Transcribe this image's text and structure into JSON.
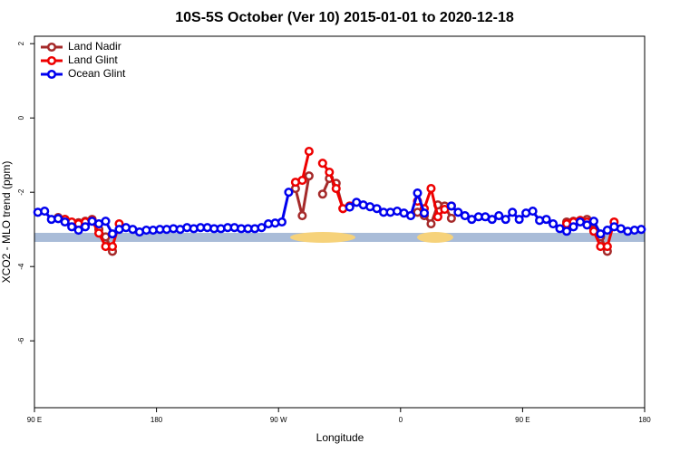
{
  "chart_data": {
    "type": "line",
    "title": "10S-5S October (Ver 10)   2015-01-01 to 2020-12-18",
    "x_label": "Longitude",
    "y_label": "XCO2 - MLO trend (ppm)",
    "xlim": [
      90,
      540
    ],
    "ylim": [
      -7.8,
      2.2
    ],
    "xticks": [
      {
        "value": 90,
        "label": "90 E"
      },
      180,
      {
        "value": 270,
        "label": "90 W"
      },
      {
        "value": 360,
        "label": "0"
      },
      {
        "value": 450,
        "label": "90 E"
      },
      {
        "value": 540,
        "label": "180"
      }
    ],
    "yticks": [
      2,
      0,
      -2,
      -4,
      -6
    ],
    "legend": "top-left",
    "series": [
      {
        "name": "Land Nadir",
        "color": "#a52a2a",
        "x": [
          107.5,
          112.5,
          117.5,
          122.5,
          127.5,
          132.5,
          137.5,
          142.5,
          147.5,
          200,
          282.5,
          287.5,
          292.5,
          297.5,
          302.5,
          307.5,
          312.5,
          317.5,
          322.5,
          350,
          372.5,
          377.5,
          382.5,
          387.5,
          392.5,
          397.5,
          440,
          482.5,
          487.5,
          492.5,
          497.5,
          502.5,
          507.5,
          512.5
        ],
        "values": [
          -2.68,
          -2.73,
          -2.85,
          -2.82,
          -2.78,
          -2.73,
          -3.0,
          -3.2,
          -3.59,
          null,
          -1.9,
          -2.63,
          -1.56,
          null,
          -2.05,
          -1.63,
          -1.76,
          -2.44,
          -2.37,
          null,
          -2.54,
          -2.63,
          -2.85,
          -2.34,
          -2.37,
          -2.7,
          null,
          -2.8,
          -2.78,
          -2.76,
          -2.73,
          -3.0,
          -3.2,
          -3.59
        ]
      },
      {
        "name": "Land Glint",
        "color": "#ee0000",
        "x": [
          112.5,
          117.5,
          122.5,
          127.5,
          132.5,
          137.5,
          142.5,
          147.5,
          152.5,
          200,
          282.5,
          287.5,
          292.5,
          297.5,
          302.5,
          307.5,
          312.5,
          317.5,
          322.5,
          350,
          372.5,
          377.5,
          382.5,
          387.5,
          392.5,
          397.5,
          440,
          482.5,
          487.5,
          492.5,
          497.5,
          502.5,
          507.5,
          512.5,
          517.5
        ],
        "values": [
          -2.73,
          -2.8,
          -2.85,
          -2.8,
          -2.76,
          -3.1,
          -3.46,
          -3.46,
          -2.85,
          null,
          -1.73,
          -1.68,
          -0.9,
          null,
          -1.22,
          -1.46,
          -1.9,
          -2.44,
          -2.37,
          null,
          -2.24,
          -2.44,
          -1.9,
          -2.66,
          -2.46,
          -2.37,
          null,
          -2.85,
          -2.8,
          -2.76,
          -2.8,
          -3.05,
          -3.46,
          -3.46,
          -2.8
        ]
      },
      {
        "name": "Ocean Glint",
        "color": "#0000ee",
        "x": [
          92.5,
          97.5,
          102.5,
          107.5,
          112.5,
          117.5,
          122.5,
          127.5,
          132.5,
          137.5,
          142.5,
          147.5,
          152.5,
          157.5,
          162.5,
          167.5,
          172.5,
          177.5,
          182.5,
          187.5,
          192.5,
          197.5,
          202.5,
          207.5,
          212.5,
          217.5,
          222.5,
          227.5,
          232.5,
          237.5,
          242.5,
          247.5,
          252.5,
          257.5,
          262.5,
          267.5,
          272.5,
          277.5,
          297.5,
          322.5,
          327.5,
          332.5,
          337.5,
          342.5,
          347.5,
          352.5,
          357.5,
          362.5,
          367.5,
          372.5,
          377.5,
          387.5,
          397.5,
          402.5,
          407.5,
          412.5,
          417.5,
          422.5,
          427.5,
          432.5,
          437.5,
          442.5,
          447.5,
          452.5,
          457.5,
          462.5,
          467.5,
          472.5,
          477.5,
          482.5,
          487.5,
          492.5,
          497.5,
          502.5,
          507.5,
          512.5,
          517.5,
          522.5,
          527.5,
          532.5,
          537.5
        ],
        "values": [
          -2.54,
          -2.51,
          -2.73,
          -2.71,
          -2.8,
          -2.93,
          -3.02,
          -2.93,
          -2.78,
          -2.85,
          -2.78,
          -3.12,
          -3.0,
          -2.95,
          -3.0,
          -3.07,
          -3.02,
          -3.02,
          -3.0,
          -3.0,
          -2.98,
          -3.0,
          -2.95,
          -2.98,
          -2.95,
          -2.95,
          -2.98,
          -2.98,
          -2.95,
          -2.95,
          -2.98,
          -2.98,
          -2.98,
          -2.95,
          -2.85,
          -2.83,
          -2.8,
          -2.0,
          null,
          -2.4,
          -2.27,
          -2.34,
          -2.39,
          -2.44,
          -2.54,
          -2.54,
          -2.51,
          -2.56,
          -2.63,
          -2.02,
          -2.56,
          null,
          -2.37,
          -2.54,
          -2.63,
          -2.73,
          -2.66,
          -2.66,
          -2.73,
          -2.63,
          -2.73,
          -2.54,
          -2.73,
          -2.56,
          -2.51,
          -2.76,
          -2.73,
          -2.85,
          -2.98,
          -3.05,
          -2.93,
          -2.8,
          -2.88,
          -2.78,
          -3.12,
          -3.02,
          -2.93,
          -2.98,
          -3.05,
          -3.02,
          -3.0
        ]
      }
    ]
  }
}
